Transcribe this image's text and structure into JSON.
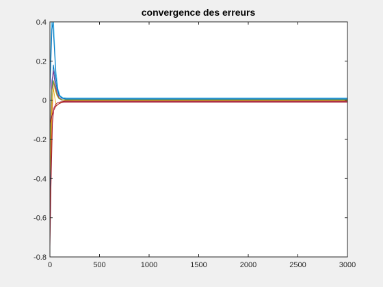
{
  "chart_data": {
    "type": "line",
    "title": "convergence des erreurs",
    "xlabel": "",
    "ylabel": "",
    "xlim": [
      0,
      3000
    ],
    "ylim": [
      -0.8,
      0.4
    ],
    "xticks": [
      0,
      500,
      1000,
      1500,
      2000,
      2500,
      3000
    ],
    "xtick_labels": [
      "0",
      "500",
      "1000",
      "1500",
      "2000",
      "2500",
      "3000"
    ],
    "yticks": [
      -0.8,
      -0.6,
      -0.4,
      -0.2,
      0,
      0.2,
      0.4
    ],
    "ytick_labels": [
      "-0.8",
      "-0.6",
      "-0.4",
      "-0.2",
      "0",
      "0.2",
      "0.4"
    ],
    "grid": false,
    "legend": "none",
    "series": [
      {
        "color": "#4DBEEE",
        "x": [
          0,
          10,
          20,
          30,
          45,
          60,
          80,
          100,
          130,
          170,
          250,
          3000
        ],
        "y": [
          0.1,
          0.28,
          0.42,
          0.48,
          0.3,
          0.15,
          0.06,
          0.025,
          0.013,
          0.012,
          0.012,
          0.012
        ]
      },
      {
        "color": "#0072BD",
        "x": [
          0,
          10,
          20,
          30,
          45,
          60,
          80,
          100,
          130,
          170,
          250,
          3000
        ],
        "y": [
          0.05,
          0.2,
          0.36,
          0.4,
          0.26,
          0.12,
          0.05,
          0.02,
          0.01,
          0.008,
          0.008,
          0.008
        ]
      },
      {
        "color": "#0072BD",
        "x": [
          0,
          10,
          20,
          35,
          50,
          70,
          90,
          120,
          160,
          250,
          3000
        ],
        "y": [
          -0.55,
          -0.2,
          0.06,
          0.18,
          0.12,
          0.06,
          0.025,
          0.01,
          0.005,
          0.005,
          0.005
        ]
      },
      {
        "color": "#7E2F8E",
        "x": [
          0,
          10,
          20,
          35,
          50,
          70,
          90,
          120,
          160,
          250,
          3000
        ],
        "y": [
          -0.3,
          -0.05,
          0.1,
          0.15,
          0.09,
          0.04,
          0.015,
          0.003,
          0,
          0,
          0
        ]
      },
      {
        "color": "#D95319",
        "x": [
          0,
          10,
          20,
          35,
          50,
          70,
          90,
          120,
          160,
          250,
          3000
        ],
        "y": [
          -0.7,
          -0.4,
          -0.1,
          0.1,
          0.07,
          0.03,
          0.01,
          0.0,
          -0.002,
          -0.002,
          -0.002
        ]
      },
      {
        "color": "#77AC30",
        "x": [
          0,
          10,
          20,
          35,
          50,
          70,
          90,
          120,
          160,
          250,
          3000
        ],
        "y": [
          -0.25,
          -0.1,
          0.05,
          0.1,
          0.06,
          0.025,
          0.008,
          0.002,
          0.002,
          0.002,
          0.002
        ]
      },
      {
        "color": "#EDB120",
        "x": [
          0,
          10,
          20,
          35,
          50,
          65,
          85,
          110,
          150,
          250,
          3000
        ],
        "y": [
          -0.4,
          -0.2,
          -0.02,
          0.06,
          0.01,
          -0.03,
          -0.02,
          -0.01,
          -0.005,
          -0.004,
          -0.004
        ]
      },
      {
        "color": "#A2142F",
        "x": [
          0,
          10,
          25,
          40,
          60,
          80,
          110,
          150,
          250,
          3000
        ],
        "y": [
          -0.75,
          -0.45,
          -0.12,
          -0.04,
          -0.02,
          -0.012,
          -0.008,
          -0.006,
          -0.006,
          -0.006
        ]
      },
      {
        "color": "#A2142F",
        "x": [
          0,
          20,
          40,
          60,
          90,
          120,
          160,
          250,
          3000
        ],
        "y": [
          -0.12,
          -0.08,
          -0.05,
          -0.03,
          -0.018,
          -0.012,
          -0.01,
          -0.01,
          -0.01
        ]
      }
    ]
  }
}
